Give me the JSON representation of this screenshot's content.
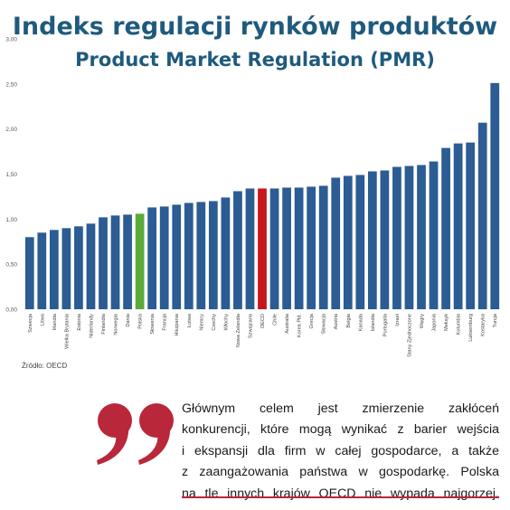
{
  "title": "Indeks regulacji rynków produktów",
  "subtitle": "Product Market Regulation (PMR)",
  "source": "Źródło: OECD",
  "quote": {
    "lines": [
      "Głównym celem jest zmierzenie zakłóceń",
      "konkurencji, które mogą wynikać z barier wejścia",
      "i ekspansji dla firm w całej gospodarce, a także",
      "z zaangażowania państwa w gospodarkę. Polska",
      "na tle innych krajów OECD nie wypada najgorzej."
    ]
  },
  "colors": {
    "title": "#1f5a7e",
    "bar_default": "#2b5c93",
    "bar_poland": "#5aab3a",
    "bar_oecd": "#c8161d",
    "quote_mark": "#b8273a"
  },
  "chart_data": {
    "type": "bar",
    "title": "Indeks regulacji rynków produktów",
    "subtitle": "Product Market Regulation (PMR)",
    "ylim": [
      0,
      3
    ],
    "yticks": [
      "0,00",
      "0,50",
      "1,00",
      "1,50",
      "2,00",
      "2,50",
      "3,00"
    ],
    "grid": false,
    "categories": [
      "Szwecja",
      "Litwa",
      "Irlandia",
      "Wielka Brytania",
      "Estonia",
      "Niderlandy",
      "Finlandia",
      "Norwegia",
      "Dania",
      "Polska",
      "Słowenia",
      "Francja",
      "Hiszpania",
      "Łotwa",
      "Niemcy",
      "Czechy",
      "Włochy",
      "Nowa Zelandia",
      "Szwajcaria",
      "OECD",
      "Chile",
      "Australia",
      "Korea Płd.",
      "Grecja",
      "Słowacja",
      "Austria",
      "Belgia",
      "Kanada",
      "Islandia",
      "Portugalia",
      "Izrael",
      "Stany Zjednoczone",
      "Węgry",
      "Japonia",
      "Meksyk",
      "Kolumbia",
      "Luksemburg",
      "Kostaryka",
      "Turcja"
    ],
    "values": [
      0.8,
      0.85,
      0.88,
      0.9,
      0.92,
      0.95,
      1.02,
      1.04,
      1.05,
      1.06,
      1.13,
      1.14,
      1.16,
      1.18,
      1.19,
      1.2,
      1.24,
      1.31,
      1.34,
      1.34,
      1.34,
      1.35,
      1.35,
      1.36,
      1.37,
      1.46,
      1.48,
      1.49,
      1.53,
      1.54,
      1.58,
      1.59,
      1.6,
      1.64,
      1.79,
      1.84,
      1.85,
      2.07,
      2.51
    ],
    "highlights": {
      "Polska": "bar_poland",
      "OECD": "bar_oecd"
    }
  }
}
